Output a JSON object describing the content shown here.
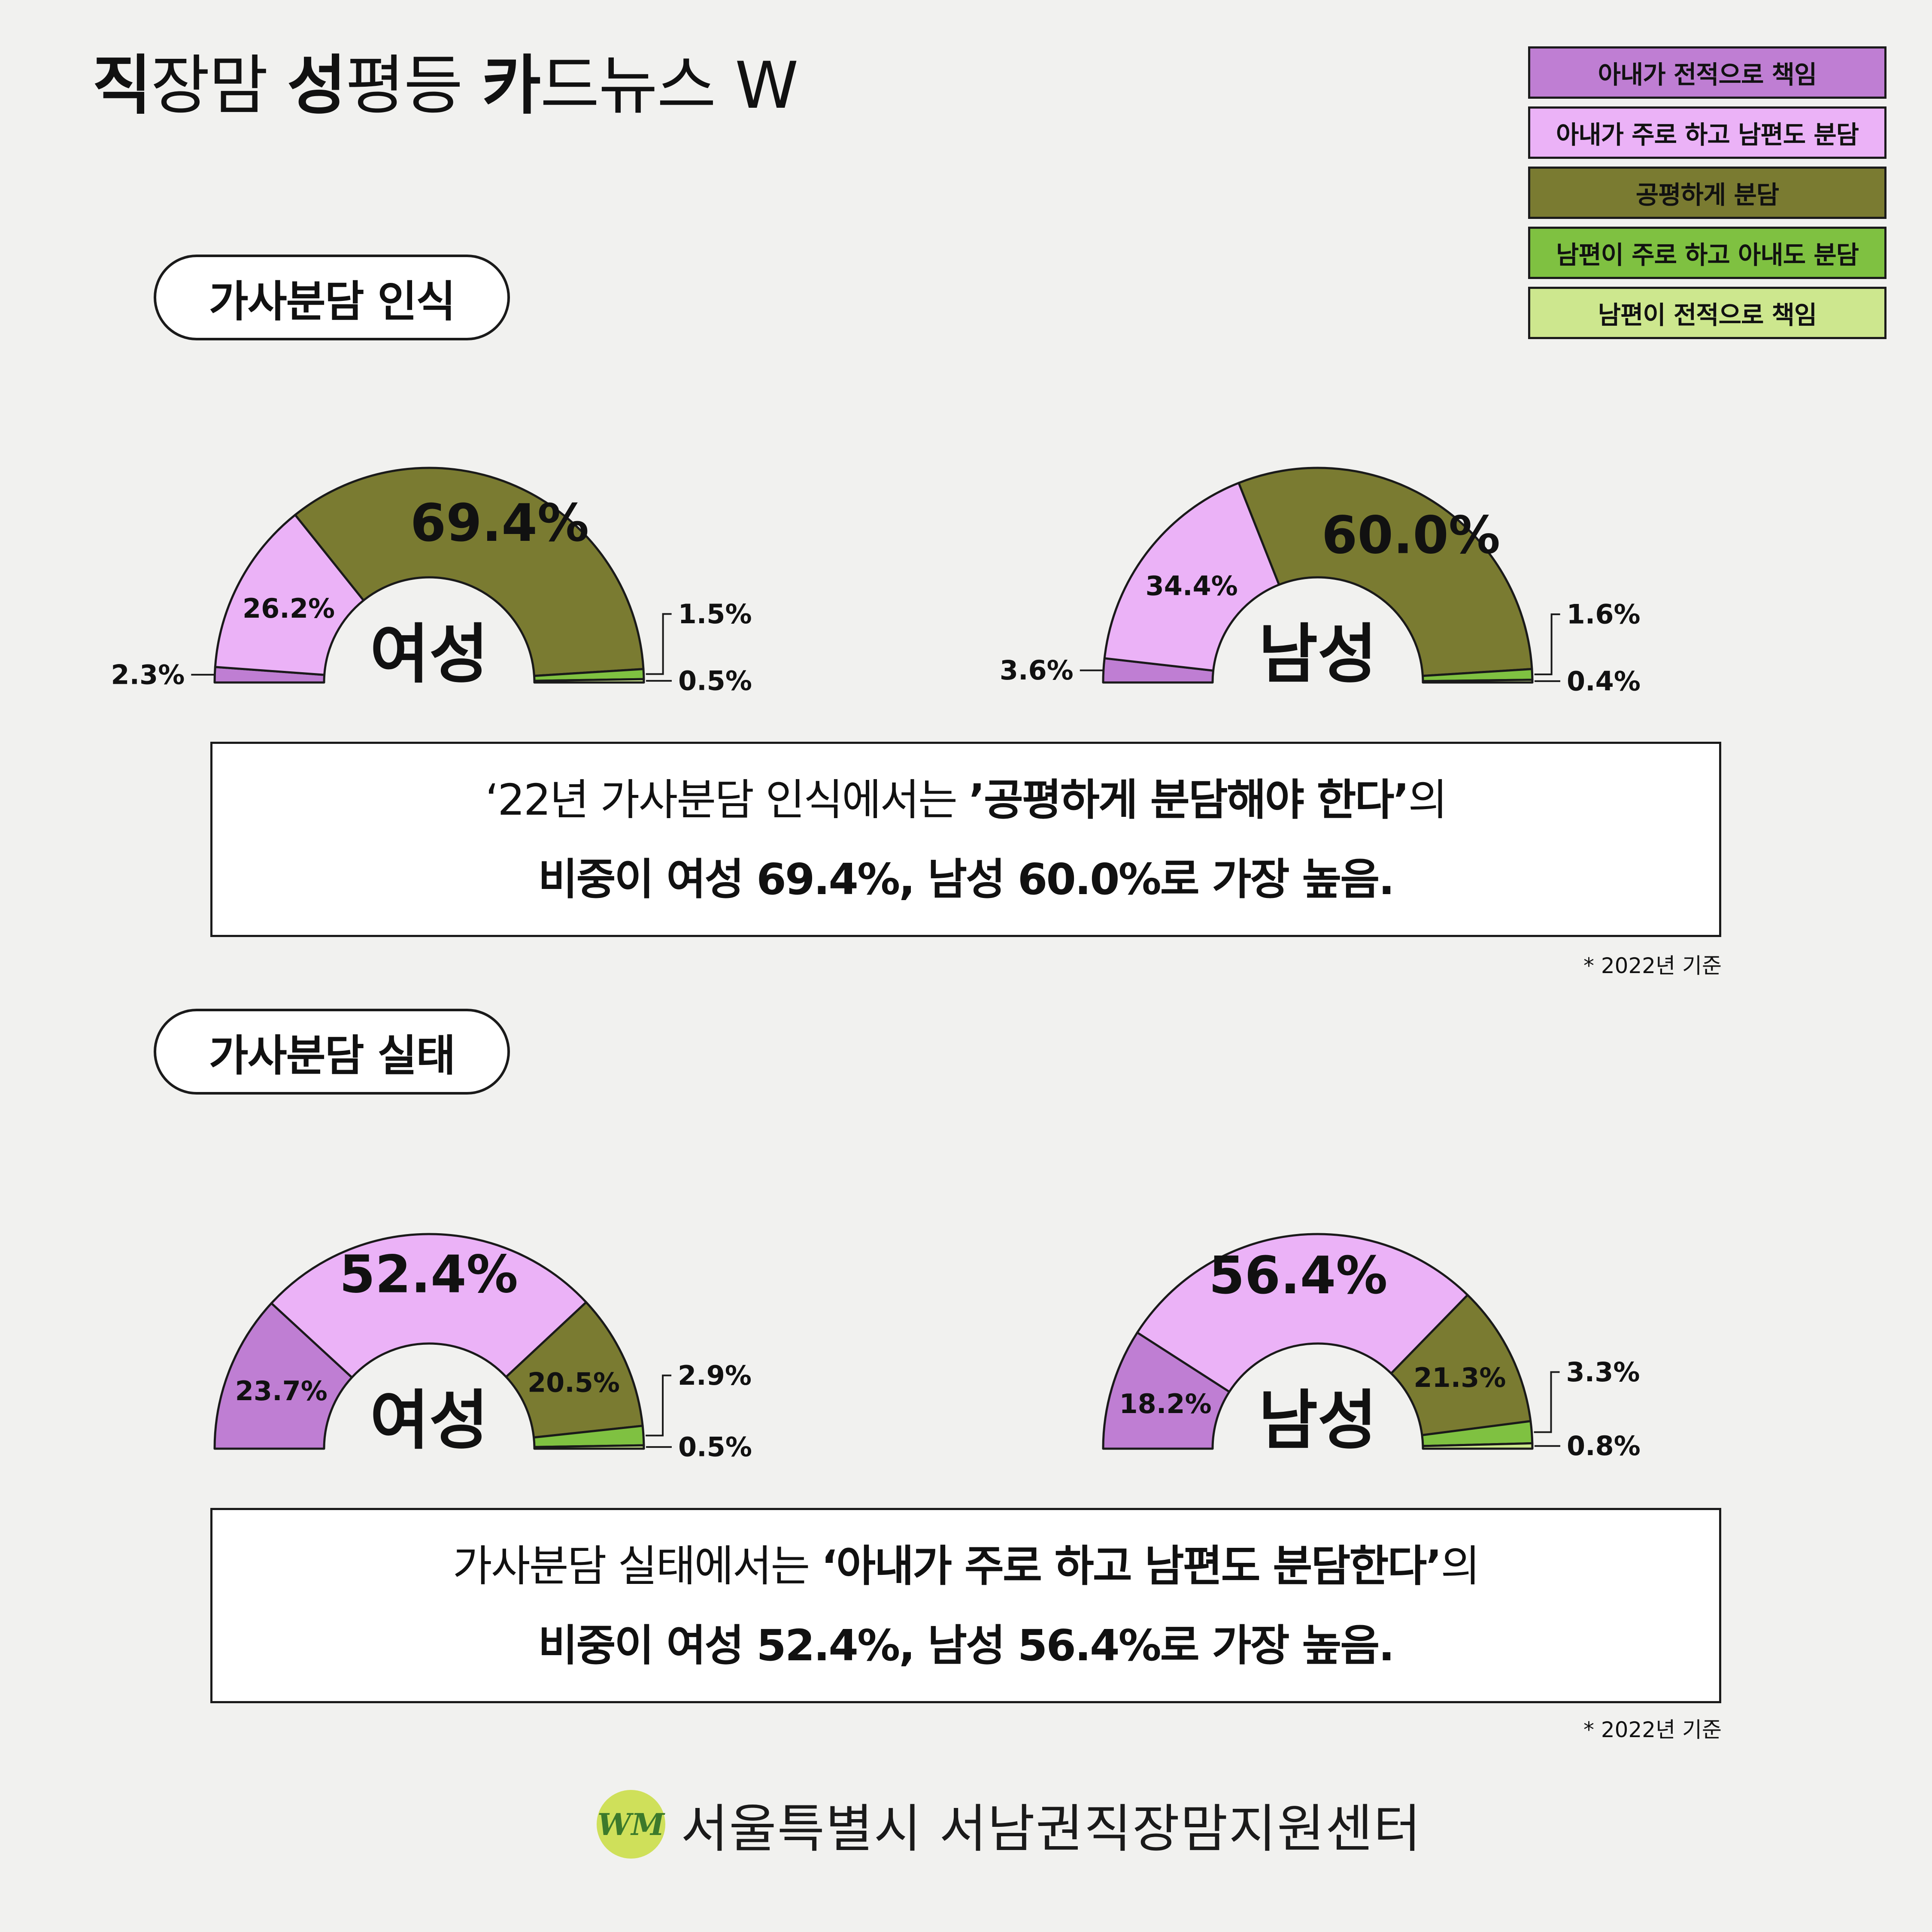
{
  "header": {
    "title_parts": [
      {
        "text": "직",
        "bold": true
      },
      {
        "text": "장맘 ",
        "bold": false
      },
      {
        "text": "성",
        "bold": true
      },
      {
        "text": "평등 ",
        "bold": false
      },
      {
        "text": "카",
        "bold": true
      },
      {
        "text": "드뉴스 W",
        "bold": false
      }
    ]
  },
  "legend": [
    {
      "label": "아내가 전적으로 책임",
      "color": "#bf7ed3"
    },
    {
      "label": "아내가 주로 하고 남편도 분담",
      "color": "#ebb2f7"
    },
    {
      "label": "공평하게 분담",
      "color": "#7a7b31"
    },
    {
      "label": "남편이 주로 하고 아내도 분담",
      "color": "#7fc141"
    },
    {
      "label": "남편이 전적으로 책임",
      "color": "#cde78e"
    }
  ],
  "sections": [
    {
      "title": "가사분담 인식",
      "summary": {
        "line1_normal": "‘22년 가사분담 인식에서는 ",
        "line1_bold": "’공평하게 분담해야 한다’",
        "line1_tail": "의",
        "line2": "비중이 여성 69.4%, 남성 60.0%로 가장 높음."
      },
      "note": "* 2022년 기준"
    },
    {
      "title": "가사분담 실태",
      "summary": {
        "line1_normal": "가사분담 실태에서는 ",
        "line1_bold": "‘아내가 주로 하고 남편도 분담한다’",
        "line1_tail": "의",
        "line2": "비중이 여성 52.4%, 남성 56.4%로 가장 높음."
      },
      "note": "* 2022년 기준"
    }
  ],
  "chart_data": [
    {
      "type": "pie",
      "section": "가사분담 인식",
      "center_label": "여성",
      "categories": [
        "아내가 전적으로 책임",
        "아내가 주로 하고 남편도 분담",
        "공평하게 분담",
        "남편이 주로 하고 아내도 분담",
        "남편이 전적으로 책임"
      ],
      "values": [
        2.3,
        26.2,
        69.4,
        1.5,
        0.5
      ],
      "labels": [
        "2.3%",
        "26.2%",
        "69.4%",
        "1.5%",
        "0.5%"
      ]
    },
    {
      "type": "pie",
      "section": "가사분담 인식",
      "center_label": "남성",
      "categories": [
        "아내가 전적으로 책임",
        "아내가 주로 하고 남편도 분담",
        "공평하게 분담",
        "남편이 주로 하고 아내도 분담",
        "남편이 전적으로 책임"
      ],
      "values": [
        3.6,
        34.4,
        60.0,
        1.6,
        0.4
      ],
      "labels": [
        "3.6%",
        "34.4%",
        "60.0%",
        "1.6%",
        "0.4%"
      ]
    },
    {
      "type": "pie",
      "section": "가사분담 실태",
      "center_label": "여성",
      "categories": [
        "아내가 전적으로 책임",
        "아내가 주로 하고 남편도 분담",
        "공평하게 분담",
        "남편이 주로 하고 아내도 분담",
        "남편이 전적으로 책임"
      ],
      "values": [
        23.7,
        52.4,
        20.5,
        2.9,
        0.5
      ],
      "labels": [
        "23.7%",
        "52.4%",
        "20.5%",
        "2.9%",
        "0.5%"
      ]
    },
    {
      "type": "pie",
      "section": "가사분담 실태",
      "center_label": "남성",
      "categories": [
        "아내가 전적으로 책임",
        "아내가 주로 하고 남편도 분담",
        "공평하게 분담",
        "남편이 주로 하고 아내도 분담",
        "남편이 전적으로 책임"
      ],
      "values": [
        18.2,
        56.4,
        21.3,
        3.3,
        0.8
      ],
      "labels": [
        "18.2%",
        "56.4%",
        "21.3%",
        "3.3%",
        "0.8%"
      ]
    }
  ],
  "footer": {
    "logo_text": "WM",
    "org_name": "서울특별시 서남권직장맘지원센터"
  }
}
